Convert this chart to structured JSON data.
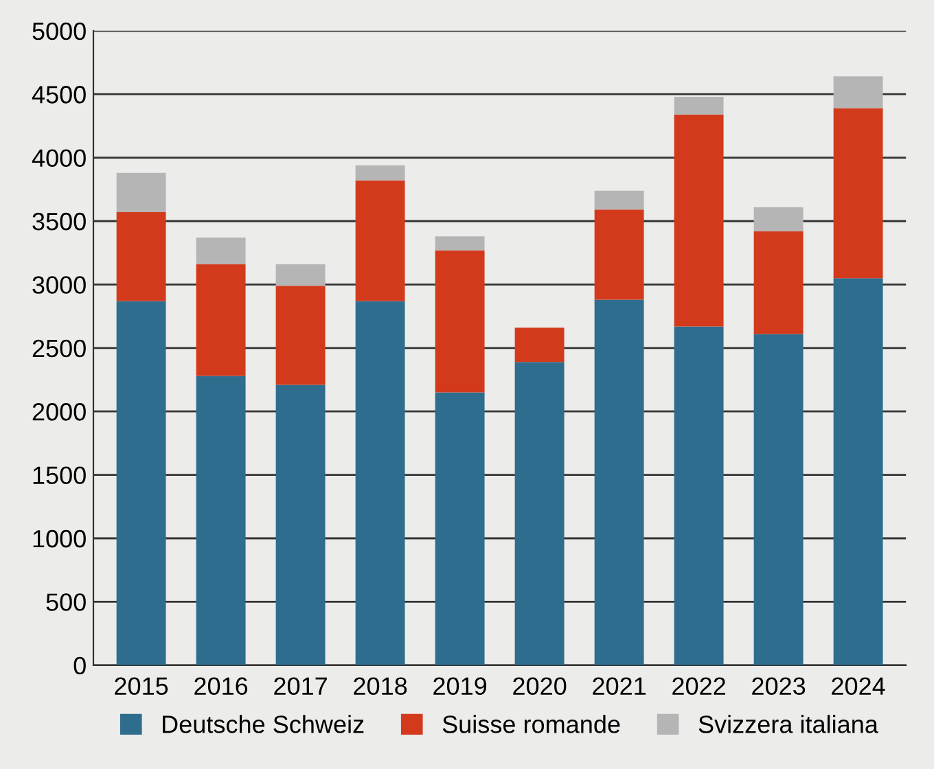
{
  "chart_data": {
    "type": "bar",
    "stacked": true,
    "categories": [
      "2015",
      "2016",
      "2017",
      "2018",
      "2019",
      "2020",
      "2021",
      "2022",
      "2023",
      "2024"
    ],
    "series": [
      {
        "name": "Deutsche Schweiz",
        "color": "#2e6d8e",
        "values": [
          2870,
          2280,
          2210,
          2870,
          2150,
          2390,
          2880,
          2670,
          2610,
          3050
        ]
      },
      {
        "name": "Suisse romande",
        "color": "#d33a1c",
        "values": [
          700,
          880,
          780,
          950,
          1120,
          270,
          710,
          1670,
          810,
          1340
        ]
      },
      {
        "name": "Svizzera italiana",
        "color": "#b5b5b5",
        "values": [
          310,
          210,
          170,
          120,
          110,
          0,
          150,
          140,
          190,
          250
        ]
      }
    ],
    "ylim": [
      0,
      5000
    ],
    "yticks": [
      0,
      500,
      1000,
      1500,
      2000,
      2500,
      3000,
      3500,
      4000,
      4500,
      5000
    ],
    "grid": "y",
    "legend": "bottom"
  }
}
